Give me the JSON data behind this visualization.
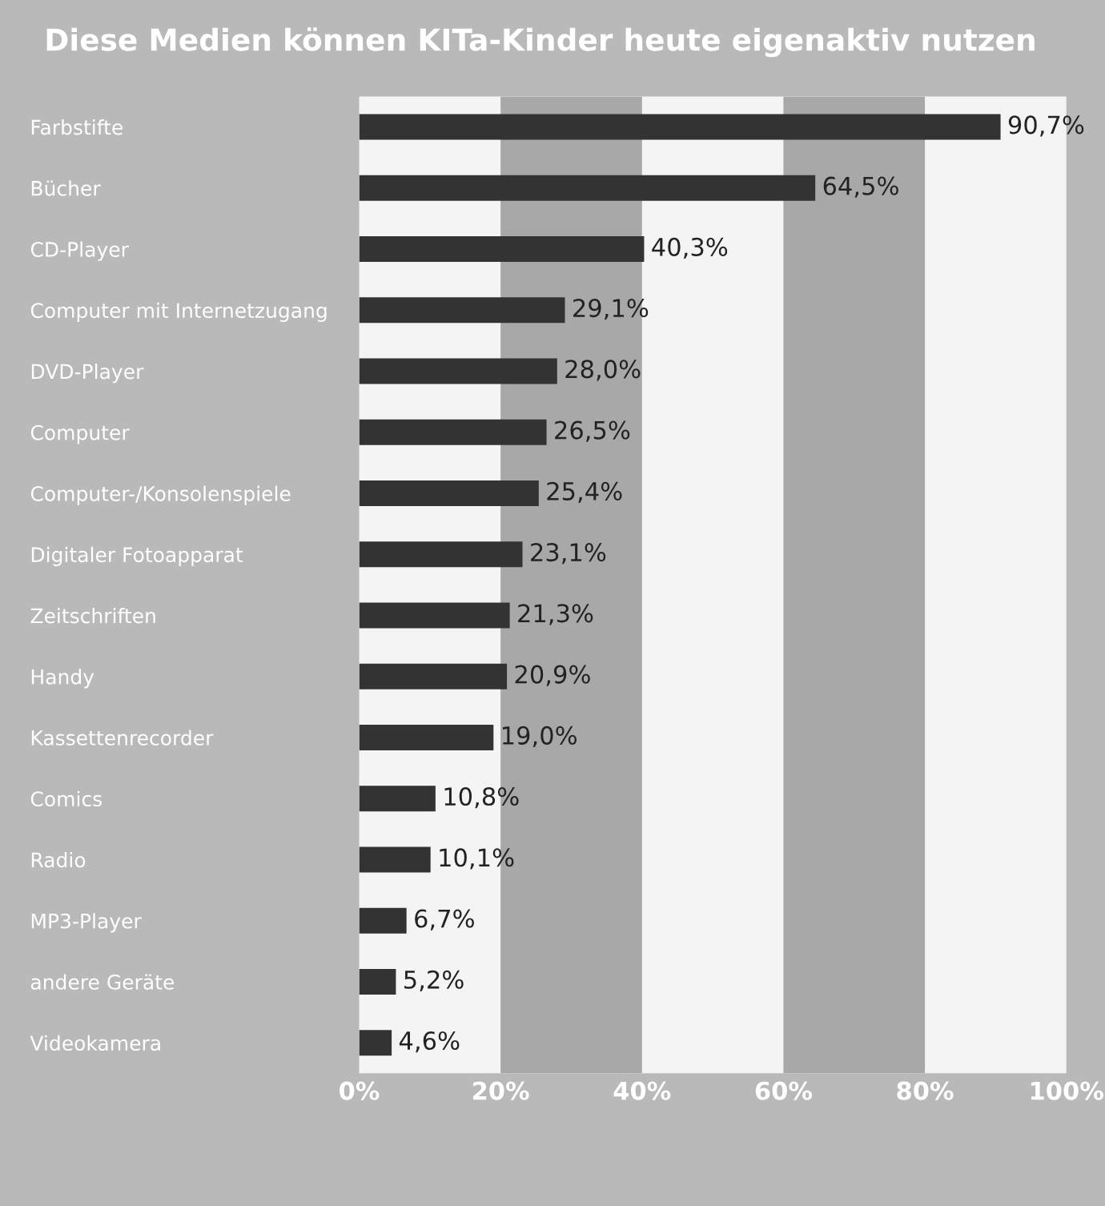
{
  "chart_data": {
    "type": "bar",
    "orientation": "horizontal",
    "title": "Diese Medien können KITa-Kinder heute eigenaktiv nutzen",
    "categories": [
      "Farbstifte",
      "Bücher",
      "CD-Player",
      "Computer mit Internetzugang",
      "DVD-Player",
      "Computer",
      "Computer-/Konsolenspiele",
      "Digitaler Fotoapparat",
      "Zeitschriften",
      "Handy",
      "Kassettenrecorder",
      "Comics",
      "Radio",
      "MP3-Player",
      "andere Geräte",
      "Videokamera"
    ],
    "values": [
      90.7,
      64.5,
      40.3,
      29.1,
      28.0,
      26.5,
      25.4,
      23.1,
      21.3,
      20.9,
      19.0,
      10.8,
      10.1,
      6.7,
      5.2,
      4.6
    ],
    "value_labels": [
      "90,7%",
      "64,5%",
      "40,3%",
      "29,1%",
      "28,0%",
      "26,5%",
      "25,4%",
      "23,1%",
      "21,3%",
      "20,9%",
      "19,0%",
      "10,8%",
      "10,1%",
      "6,7%",
      "5,2%",
      "4,6%"
    ],
    "color": "#333333",
    "xlim": [
      0,
      100
    ],
    "xticks": [
      {
        "value": 0,
        "label": "0%"
      },
      {
        "value": 20,
        "label": "20%"
      },
      {
        "value": 40,
        "label": "40%"
      },
      {
        "value": 60,
        "label": "60%"
      },
      {
        "value": 80,
        "label": "80%"
      },
      {
        "value": 100,
        "label": "100%"
      }
    ],
    "bands": [
      {
        "axis": "x",
        "from": 20,
        "to": 40,
        "color": "#a8a8a8"
      },
      {
        "axis": "x",
        "from": 60,
        "to": 80,
        "color": "#a8a8a8"
      }
    ],
    "grid": false,
    "legend": false
  }
}
